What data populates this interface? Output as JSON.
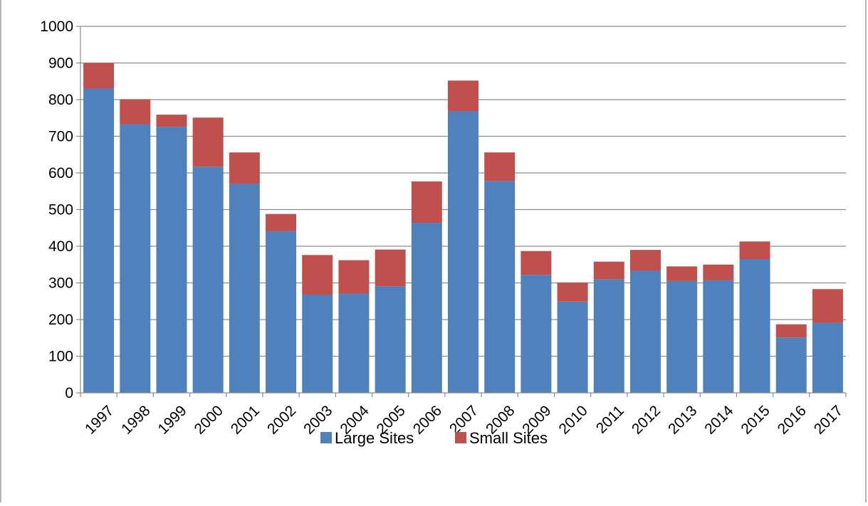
{
  "chart_data": {
    "type": "bar",
    "stacked": true,
    "title": "",
    "xlabel": "",
    "ylabel": "",
    "ylim": [
      0,
      1000
    ],
    "yticks": [
      0,
      100,
      200,
      300,
      400,
      500,
      600,
      700,
      800,
      900,
      1000
    ],
    "grid": true,
    "legend_position": "bottom",
    "categories": [
      "1997",
      "1998",
      "1999",
      "2000",
      "2001",
      "2002",
      "2003",
      "2004",
      "2005",
      "2006",
      "2007",
      "2008",
      "2009",
      "2010",
      "2011",
      "2012",
      "2013",
      "2014",
      "2015",
      "2016",
      "2017"
    ],
    "series": [
      {
        "name": "Large Sites",
        "color": "#4F81BD",
        "values": [
          830,
          733,
          726,
          617,
          570,
          441,
          268,
          271,
          291,
          464,
          768,
          578,
          322,
          249,
          310,
          333,
          305,
          307,
          365,
          151,
          191
        ]
      },
      {
        "name": "Small Sites",
        "color": "#C0504D",
        "values": [
          70,
          68,
          33,
          134,
          86,
          47,
          108,
          91,
          100,
          113,
          84,
          78,
          65,
          52,
          48,
          57,
          40,
          43,
          48,
          36,
          92
        ]
      }
    ]
  }
}
